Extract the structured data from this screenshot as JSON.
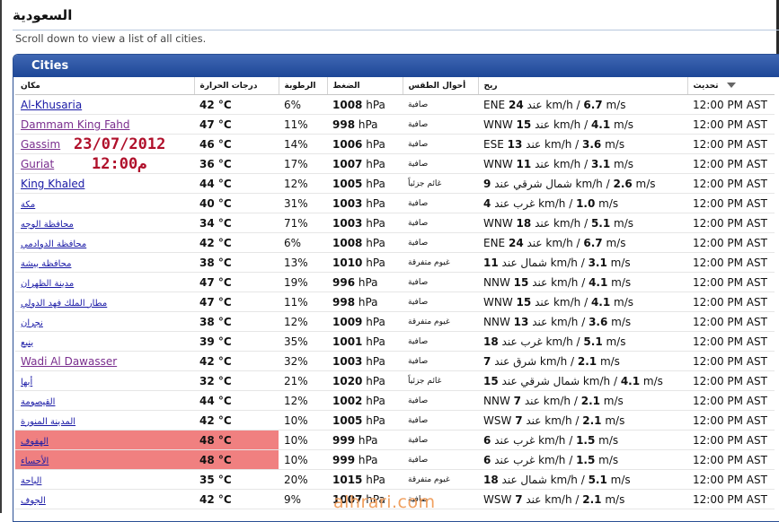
{
  "page": {
    "title": "السعودية",
    "subtitle": "Scroll down to view a list of all cities."
  },
  "panel": {
    "title": "Cities"
  },
  "columns": {
    "city": "مكان",
    "temp": "درجات الحرارة",
    "humidity": "الرطوبة",
    "pressure": "الضغط",
    "conditions": "أحوال الطقس",
    "wind": "ريح",
    "updated": "تحديث"
  },
  "overlay": {
    "date": "23/07/2012",
    "time": "12:00م"
  },
  "watermark": "alhrari.com",
  "rows": [
    {
      "city": "Al-Khusaria",
      "t": "42",
      "h": "6%",
      "p": "1008",
      "cond": "صافية",
      "dir": "ENE",
      "spd": "24",
      "ar": "عند",
      "ms": "6.7",
      "upd": "12:00 PM AST"
    },
    {
      "city": "Dammam King Fahd",
      "t": "47",
      "h": "11%",
      "p": "998",
      "cond": "صافية",
      "dir": "WNW",
      "spd": "15",
      "ar": "عند",
      "ms": "4.1",
      "upd": "12:00 PM AST"
    },
    {
      "city": "Gassim",
      "t": "46",
      "h": "14%",
      "p": "1006",
      "cond": "صافية",
      "dir": "ESE",
      "spd": "13",
      "ar": "عند",
      "ms": "3.6",
      "upd": "12:00 PM AST"
    },
    {
      "city": "Guriat",
      "t": "36",
      "h": "17%",
      "p": "1007",
      "cond": "صافية",
      "dir": "WNW",
      "spd": "11",
      "ar": "عند",
      "ms": "3.1",
      "upd": "12:00 PM AST"
    },
    {
      "city": "King Khaled",
      "t": "44",
      "h": "12%",
      "p": "1005",
      "cond": "غائم جزئياً",
      "dir": "",
      "spd": "9",
      "ar": "شمال شرقي عند",
      "ms": "2.6",
      "upd": "12:00 PM AST"
    },
    {
      "city": "مكة",
      "t": "40",
      "h": "31%",
      "p": "1003",
      "cond": "صافية",
      "dir": "",
      "spd": "4",
      "ar": "غرب عند",
      "ms": "1.0",
      "upd": "12:00 PM AST"
    },
    {
      "city": "محافظة الوجه",
      "t": "34",
      "h": "71%",
      "p": "1003",
      "cond": "صافية",
      "dir": "WNW",
      "spd": "18",
      "ar": "عند",
      "ms": "5.1",
      "upd": "12:00 PM AST"
    },
    {
      "city": "محافظة الدوادمي",
      "t": "42",
      "h": "6%",
      "p": "1008",
      "cond": "صافية",
      "dir": "ENE",
      "spd": "24",
      "ar": "عند",
      "ms": "6.7",
      "upd": "12:00 PM AST"
    },
    {
      "city": "محافظة بيشة",
      "t": "38",
      "h": "13%",
      "p": "1010",
      "cond": "غيوم متفرقة",
      "dir": "",
      "spd": "11",
      "ar": "شمال عند",
      "ms": "3.1",
      "upd": "12:00 PM AST"
    },
    {
      "city": "مدينة الظهران",
      "t": "47",
      "h": "19%",
      "p": "996",
      "cond": "صافية",
      "dir": "NNW",
      "spd": "15",
      "ar": "عند",
      "ms": "4.1",
      "upd": "12:00 PM AST"
    },
    {
      "city": "مطار الملك فهد الدولي",
      "t": "47",
      "h": "11%",
      "p": "998",
      "cond": "صافية",
      "dir": "WNW",
      "spd": "15",
      "ar": "عند",
      "ms": "4.1",
      "upd": "12:00 PM AST"
    },
    {
      "city": "نجران",
      "t": "38",
      "h": "12%",
      "p": "1009",
      "cond": "غيوم متفرقة",
      "dir": "NNW",
      "spd": "13",
      "ar": "عند",
      "ms": "3.6",
      "upd": "12:00 PM AST"
    },
    {
      "city": "ينبع",
      "t": "39",
      "h": "35%",
      "p": "1001",
      "cond": "صافية",
      "dir": "",
      "spd": "18",
      "ar": "غرب عند",
      "ms": "5.1",
      "upd": "12:00 PM AST"
    },
    {
      "city": "Wadi Al Dawasser",
      "t": "42",
      "h": "32%",
      "p": "1003",
      "cond": "صافية",
      "dir": "",
      "spd": "7",
      "ar": "شرق عند",
      "ms": "2.1",
      "upd": "12:00 PM AST"
    },
    {
      "city": "أبها",
      "t": "32",
      "h": "21%",
      "p": "1020",
      "cond": "غائم جزئياً",
      "dir": "",
      "spd": "15",
      "ar": "شمال شرقي عند",
      "ms": "4.1",
      "upd": "12:00 PM AST"
    },
    {
      "city": "القيصومة",
      "t": "44",
      "h": "12%",
      "p": "1002",
      "cond": "صافية",
      "dir": "NNW",
      "spd": "7",
      "ar": "عند",
      "ms": "2.1",
      "upd": "12:00 PM AST"
    },
    {
      "city": "المدينة المنورة",
      "t": "42",
      "h": "10%",
      "p": "1005",
      "cond": "صافية",
      "dir": "WSW",
      "spd": "7",
      "ar": "عند",
      "ms": "2.1",
      "upd": "12:00 PM AST"
    },
    {
      "city": "الهفوف",
      "t": "48",
      "h": "10%",
      "p": "999",
      "cond": "صافية",
      "dir": "",
      "spd": "6",
      "ar": "غرب عند",
      "ms": "1.5",
      "upd": "12:00 PM AST",
      "hot": true
    },
    {
      "city": "الأحساء",
      "t": "48",
      "h": "10%",
      "p": "999",
      "cond": "صافية",
      "dir": "",
      "spd": "6",
      "ar": "غرب عند",
      "ms": "1.5",
      "upd": "12:00 PM AST",
      "hot": true
    },
    {
      "city": "الباحة",
      "t": "35",
      "h": "20%",
      "p": "1015",
      "cond": "غيوم متفرقة",
      "dir": "",
      "spd": "18",
      "ar": "شمال عند",
      "ms": "5.1",
      "upd": "12:00 PM AST"
    },
    {
      "city": "الجوف",
      "t": "42",
      "h": "9%",
      "p": "1007",
      "cond": "صافية",
      "dir": "WSW",
      "spd": "7",
      "ar": "عند",
      "ms": "2.1",
      "upd": "12:00 PM AST"
    }
  ]
}
